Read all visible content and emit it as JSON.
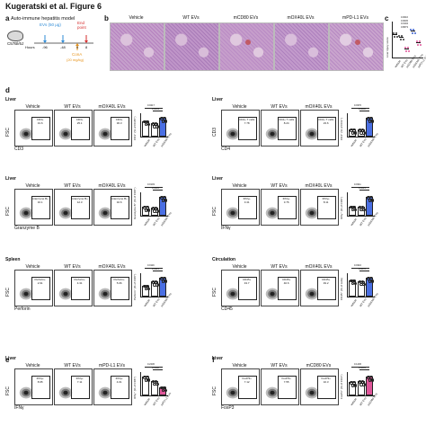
{
  "header": "Kugeratski et al. Figure 6",
  "panel_a": {
    "letter": "a",
    "title": "Auto-immune hepatitis model",
    "strain": "C57Bl/6J",
    "treatment": "EVs (50 μg)",
    "endpoint": "End point",
    "hours_label": "Hours",
    "hours": [
      "-96",
      "-48",
      "0",
      "8"
    ],
    "drug": "ConA",
    "dose": "(20 mg/kg)"
  },
  "panel_b": {
    "letter": "b",
    "conditions": [
      "Vehicle",
      "WT EVs",
      "mCD80 EVs",
      "mOX40L EVs",
      "mPD-L1 EVs"
    ]
  },
  "panel_c": {
    "letter": "c",
    "ylabel": "Liver injury score",
    "pvalues": [
      "0.0016",
      "0.0045",
      "0.0104",
      "0.8673"
    ],
    "categories": [
      "Vehicle",
      "WT EVs",
      "mCD80 EVs",
      "mOX40L EVs",
      "mPD-L1 EVs"
    ]
  },
  "panel_d": {
    "letter": "d",
    "blocks": [
      {
        "tissue": "Liver",
        "conditions": [
          "Vehicle",
          "WT EVs",
          "mOX40L EVs"
        ],
        "gate": "CD3+",
        "values": [
          "31.6",
          "25.1",
          "36.3"
        ],
        "xaxis": "CD3",
        "yaxis": "FSC",
        "ylabel": "CD3⁺ (% of CD45⁺)",
        "pvalues": [
          "0.0217",
          "0.0063"
        ]
      },
      {
        "tissue": "Liver",
        "conditions": [
          "Vehicle",
          "WT EVs",
          "mOX40L EVs"
        ],
        "gate": "CD4+ T cells",
        "values": [
          "7.78",
          "8.24",
          "23.6"
        ],
        "xaxis": "CD4",
        "yaxis": "CD3",
        "ylabel": "CD4⁺ (% of CD3⁺)",
        "pvalues": [
          "0.0370",
          "0.0030"
        ]
      },
      {
        "tissue": "Liver",
        "conditions": [
          "Vehicle",
          "WT EVs",
          "mOX40L EVs"
        ],
        "gate": "Granzyme B+",
        "values": [
          "16.1",
          "12.3",
          "32.6"
        ],
        "xaxis": "Granzyme B",
        "yaxis": "FSC",
        "ylabel": "Granzyme B⁺ (% of CD8⁺)",
        "pvalues": [
          "0.0103",
          "0.0205"
        ]
      },
      {
        "tissue": "Liver",
        "conditions": [
          "Vehicle",
          "WT EVs",
          "mOX40L EVs"
        ],
        "gate": "IFNγ+",
        "values": [
          "3.41",
          "3.76",
          "8.11"
        ],
        "xaxis": "IFNγ",
        "yaxis": "FSC",
        "ylabel": "IFNγ⁺ (% of CD8⁺)",
        "pvalues": [
          "0.0311",
          "0.0025"
        ]
      },
      {
        "tissue": "Spleen",
        "conditions": [
          "Vehicle",
          "WT EVs",
          "mOX40L EVs"
        ],
        "gate": "Perforin+",
        "values": [
          "2.91",
          "4.31",
          "5.06"
        ],
        "xaxis": "Perforin",
        "yaxis": "FSC",
        "ylabel": "Perforin⁺ (% of CD8⁺)",
        "pvalues": [
          "0.0116",
          "0.0215"
        ]
      },
      {
        "tissue": "Circulation",
        "conditions": [
          "Vehicle",
          "WT EVs",
          "mOX40L EVs"
        ],
        "gate": "CD45+",
        "values": [
          "43.7",
          "40.6",
          "49.2"
        ],
        "xaxis": "CD45",
        "yaxis": "FSC",
        "ylabel": "CD45⁺ (% of cells)",
        "pvalues": [
          "0.0310",
          "0.0078"
        ]
      }
    ]
  },
  "panel_e": {
    "letter": "e",
    "tissue": "Liver",
    "conditions": [
      "Vehicle",
      "WT EVs",
      "mPD-L1 EVs"
    ],
    "gate": "IFNγ+",
    "values": [
      "8.95",
      "7.11",
      "4.01"
    ],
    "xaxis": "IFNγ",
    "yaxis": "FSC",
    "ylabel": "IFNγ⁺ (% of CD8⁺)",
    "pvalues": [
      "0.2236",
      "0.0160"
    ]
  },
  "panel_f": {
    "letter": "f",
    "tissue": "Liver",
    "conditions": [
      "Vehicle",
      "WT EVs",
      "mCD80 EVs"
    ],
    "gate": "FoxP3+",
    "values": [
      "7.12",
      "7.55",
      "10.3"
    ],
    "xaxis": "FoxP3",
    "yaxis": "FSC",
    "ylabel": "FoxP3⁺ (% of CD4⁺)",
    "pvalues": [
      "0.1436",
      "0.0045"
    ]
  },
  "chart_data": [
    {
      "type": "scatter",
      "panel": "c",
      "ylabel": "Liver injury score",
      "categories": [
        "Vehicle",
        "WT EVs",
        "mCD80 EVs",
        "mOX40L EVs",
        "mPD-L1 EVs"
      ],
      "colors": [
        "#333333",
        "#333333",
        "#e0569a",
        "#3a5fcd",
        "#e0569a"
      ],
      "values": [
        3.2,
        2.9,
        1.2,
        3.8,
        2.1
      ],
      "ylim": [
        0,
        5
      ]
    },
    {
      "type": "bar",
      "panel": "d-CD3",
      "ylabel": "CD3⁺ (% of CD45⁺)",
      "categories": [
        "Vehicle",
        "WT EVs",
        "mOX40L EVs"
      ],
      "values": [
        31,
        26,
        37
      ],
      "colors": [
        "#ffffff",
        "#ffffff",
        "#4a6fe3"
      ]
    },
    {
      "type": "bar",
      "panel": "d-CD4",
      "ylabel": "CD4⁺ (% of CD3⁺)",
      "categories": [
        "Vehicle",
        "WT EVs",
        "mOX40L EVs"
      ],
      "values": [
        8,
        8,
        22
      ],
      "colors": [
        "#ffffff",
        "#ffffff",
        "#4a6fe3"
      ]
    },
    {
      "type": "bar",
      "panel": "d-GzmB",
      "ylabel": "Granzyme B⁺ (% of CD8⁺)",
      "categories": [
        "Vehicle",
        "WT EVs",
        "mOX40L EVs"
      ],
      "values": [
        15,
        13,
        31
      ],
      "colors": [
        "#ffffff",
        "#ffffff",
        "#4a6fe3"
      ]
    },
    {
      "type": "bar",
      "panel": "d-IFNg",
      "ylabel": "IFNγ⁺ (% of CD8⁺)",
      "categories": [
        "Vehicle",
        "WT EVs",
        "mOX40L EVs"
      ],
      "values": [
        4,
        4,
        8
      ],
      "colors": [
        "#ffffff",
        "#ffffff",
        "#4a6fe3"
      ]
    },
    {
      "type": "bar",
      "panel": "d-Perforin",
      "ylabel": "Perforin⁺ (% of CD8⁺)",
      "categories": [
        "Vehicle",
        "WT EVs",
        "mOX40L EVs"
      ],
      "values": [
        3,
        4,
        5
      ],
      "colors": [
        "#ffffff",
        "#ffffff",
        "#4a6fe3"
      ]
    },
    {
      "type": "bar",
      "panel": "d-CD45",
      "ylabel": "CD45⁺ (% of cells)",
      "categories": [
        "Vehicle",
        "WT EVs",
        "mOX40L EVs"
      ],
      "values": [
        43,
        41,
        49
      ],
      "colors": [
        "#ffffff",
        "#ffffff",
        "#4a6fe3"
      ]
    },
    {
      "type": "bar",
      "panel": "e",
      "ylabel": "IFNγ⁺ (% of CD8⁺)",
      "categories": [
        "Vehicle",
        "WT EVs",
        "mPD-L1 EVs"
      ],
      "values": [
        9,
        7,
        4
      ],
      "colors": [
        "#ffffff",
        "#ffffff",
        "#e0569a"
      ]
    },
    {
      "type": "bar",
      "panel": "f",
      "ylabel": "FoxP3⁺ (% of CD4⁺)",
      "categories": [
        "Vehicle",
        "WT EVs",
        "mCD80 EVs"
      ],
      "values": [
        7,
        7.5,
        10
      ],
      "colors": [
        "#ffffff",
        "#ffffff",
        "#e0569a"
      ]
    }
  ]
}
